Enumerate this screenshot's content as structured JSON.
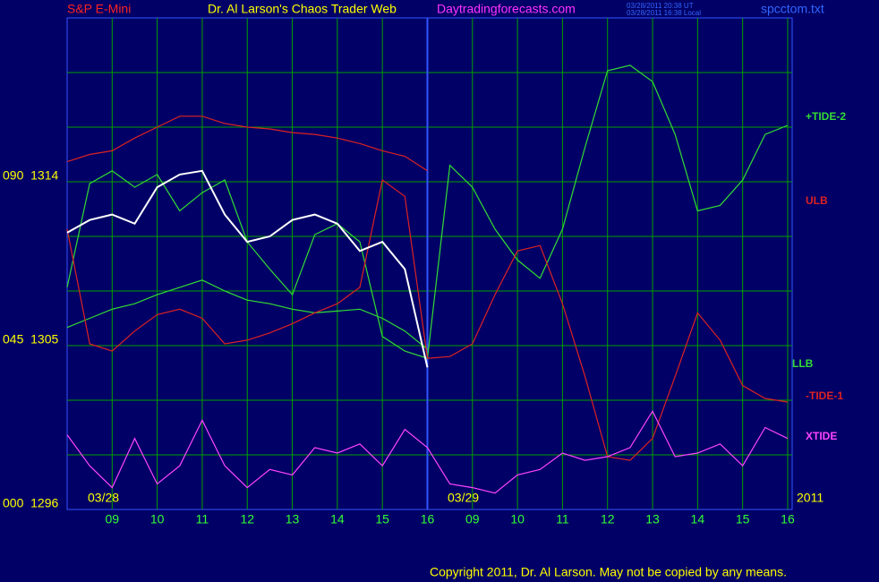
{
  "header": {
    "instrument": "S&P E-Mini",
    "title": "Dr. Al Larson's Chaos Trader Web",
    "site": "Daytradingforecasts.com",
    "time_ut": "03/28/2011 20:38 UT",
    "time_local": "03/28/2011 16:38 Local",
    "file": "spcctom.txt"
  },
  "chart_data": {
    "type": "line",
    "x": [
      0,
      0.5,
      1,
      1.5,
      2,
      2.5,
      3,
      3.5,
      4,
      4.5,
      5,
      5.5,
      6,
      6.5,
      7,
      7.5,
      8,
      8.5,
      9,
      9.5,
      10,
      10.5,
      11,
      11.5,
      12,
      12.5,
      13,
      13.5,
      14,
      14.5,
      15,
      15.5,
      16
    ],
    "xlim": [
      0,
      16.1
    ],
    "xticks": [
      {
        "value": 1,
        "label": "09"
      },
      {
        "value": 2,
        "label": "10"
      },
      {
        "value": 3,
        "label": "11"
      },
      {
        "value": 4,
        "label": "12"
      },
      {
        "value": 5,
        "label": "13"
      },
      {
        "value": 6,
        "label": "14"
      },
      {
        "value": 7,
        "label": "15"
      },
      {
        "value": 8,
        "label": "16"
      },
      {
        "value": 9,
        "label": "09"
      },
      {
        "value": 10,
        "label": "10"
      },
      {
        "value": 11,
        "label": "11"
      },
      {
        "value": 12,
        "label": "12"
      },
      {
        "value": 13,
        "label": "13"
      },
      {
        "value": 14,
        "label": "14"
      },
      {
        "value": 15,
        "label": "15"
      },
      {
        "value": 16,
        "label": "16"
      }
    ],
    "date_labels": [
      "03/28",
      "03/29",
      "2011"
    ],
    "ylim": [
      1296,
      1323
    ],
    "yticks": [
      {
        "value": 1296,
        "label": "000  1296"
      },
      {
        "value": 1305,
        "label": "045  1305"
      },
      {
        "value": 1314,
        "label": "090  1314"
      }
    ],
    "ygrid": [
      1299,
      1302,
      1305,
      1308,
      1311,
      1314,
      1317,
      1320
    ],
    "grid": true,
    "price": {
      "color": "#ffffff",
      "values": [
        1311.2,
        1311.9,
        1312.2,
        1311.7,
        1313.7,
        1314.4,
        1314.6,
        1312.2,
        1310.7,
        1311.0,
        1311.9,
        1312.2,
        1311.7,
        1310.2,
        1310.7,
        1309.2,
        1303.8,
        null,
        null,
        null,
        null,
        null,
        null,
        null,
        null,
        null,
        null,
        null,
        null,
        null,
        null,
        null,
        null
      ]
    },
    "series": [
      {
        "name": "+TIDE-2",
        "color": "#33dd33",
        "values": [
          1308.2,
          1313.9,
          1314.6,
          1313.7,
          1314.4,
          1312.4,
          1313.4,
          1314.1,
          1310.7,
          1309.2,
          1307.8,
          1311.1,
          1311.7,
          1310.7,
          1305.5,
          1304.7,
          1304.3,
          1314.9,
          1313.7,
          1311.4,
          1309.7,
          1308.7,
          1311.4,
          1315.9,
          1320.1,
          1320.4,
          1319.5,
          1316.6,
          1312.4,
          1312.7,
          1314.1,
          1316.6,
          1317.1
        ]
      },
      {
        "name": "ULB",
        "color": "#dd2222",
        "values": [
          1315.1,
          1315.5,
          1315.7,
          1316.4,
          1317.0,
          1317.6,
          1317.6,
          1317.2,
          1317.0,
          1316.9,
          1316.7,
          1316.6,
          1316.4,
          1316.1,
          1315.7,
          1315.4,
          1314.6,
          null,
          null,
          null,
          null,
          null,
          null,
          null,
          null,
          null,
          null,
          null,
          null,
          null,
          null,
          null,
          null
        ]
      },
      {
        "name": "LLB",
        "color": "#33dd33",
        "values": [
          1306.0,
          1306.5,
          1307.0,
          1307.3,
          1307.8,
          1308.2,
          1308.6,
          1308.0,
          1307.5,
          1307.3,
          1307.0,
          1306.8,
          1306.9,
          1307.0,
          1306.5,
          1305.8,
          1304.8,
          null,
          null,
          null,
          null,
          null,
          null,
          null,
          null,
          null,
          null,
          null,
          null,
          null,
          null,
          null,
          null
        ]
      },
      {
        "name": "-TIDE-1",
        "color": "#dd2222",
        "values": [
          1311.4,
          1305.1,
          1304.7,
          1305.8,
          1306.7,
          1307.0,
          1306.5,
          1305.1,
          1305.3,
          1305.7,
          1306.2,
          1306.8,
          1307.3,
          1308.2,
          1314.1,
          1313.2,
          1304.3,
          1304.4,
          1305.1,
          1307.8,
          1310.2,
          1310.5,
          1307.3,
          1303.3,
          1298.9,
          1298.7,
          1299.9,
          1303.3,
          1306.8,
          1305.3,
          1302.8,
          1302.1,
          1301.9
        ]
      },
      {
        "name": "XTIDE",
        "color": "#ff44ff",
        "values": [
          1300.1,
          1298.4,
          1297.2,
          1299.9,
          1297.4,
          1298.4,
          1300.9,
          1298.4,
          1297.2,
          1298.2,
          1297.9,
          1299.4,
          1299.1,
          1299.6,
          1298.4,
          1300.4,
          1299.4,
          1297.4,
          1297.2,
          1296.9,
          1297.9,
          1298.2,
          1299.1,
          1298.7,
          1298.9,
          1299.4,
          1301.4,
          1298.9,
          1299.1,
          1299.6,
          1298.4,
          1300.5,
          1299.9
        ]
      }
    ]
  },
  "footer": {
    "copyright": "Copyright 2011, Dr. Al Larson. May not be copied by any means."
  }
}
